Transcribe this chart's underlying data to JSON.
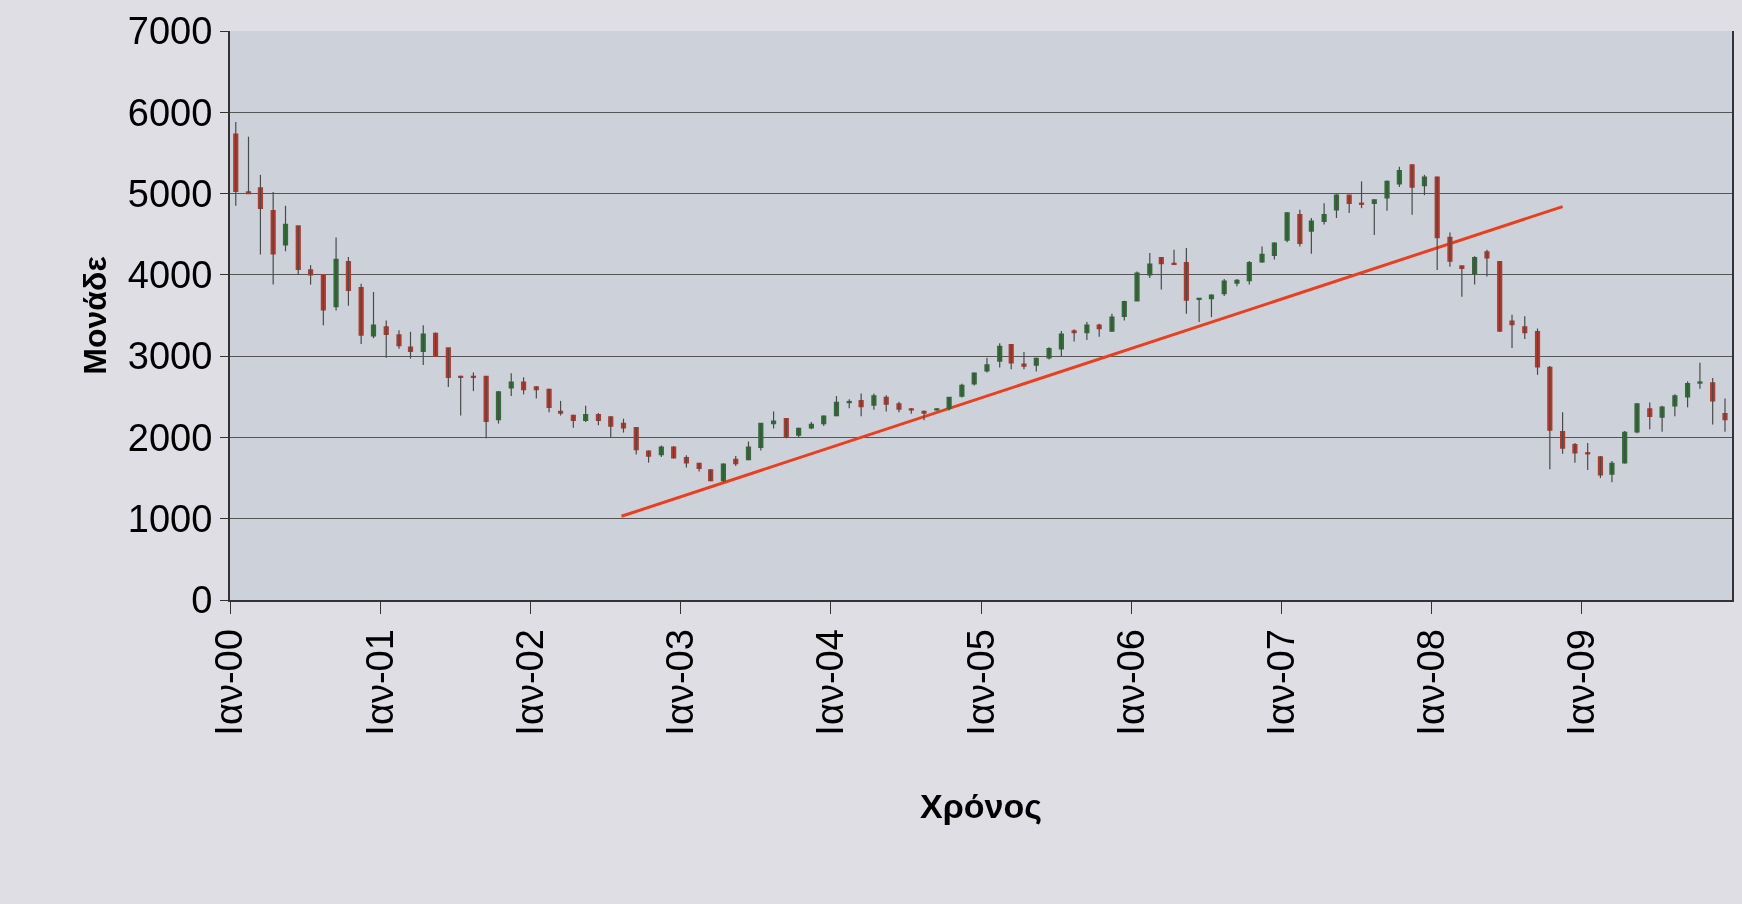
{
  "chart_data": {
    "type": "candlestick",
    "xlabel": "Χρόνος",
    "ylabel": "Μονάδε",
    "xlim": [
      "2000-01-01",
      "2010-01-01"
    ],
    "xticks": [
      {
        "value": "2000-01",
        "label": "Ιαν-00"
      },
      {
        "value": "2001-01",
        "label": "Ιαν-01"
      },
      {
        "value": "2002-01",
        "label": "Ιαν-02"
      },
      {
        "value": "2003-01",
        "label": "Ιαν-03"
      },
      {
        "value": "2004-01",
        "label": "Ιαν-04"
      },
      {
        "value": "2005-01",
        "label": "Ιαν-05"
      },
      {
        "value": "2006-01",
        "label": "Ιαν-06"
      },
      {
        "value": "2007-01",
        "label": "Ιαν-07"
      },
      {
        "value": "2008-01",
        "label": "Ιαν-08"
      },
      {
        "value": "2009-01",
        "label": "Ιαν-09"
      }
    ],
    "ylim": [
      0,
      7000
    ],
    "yticks": [
      0,
      1000,
      2000,
      3000,
      4000,
      5000,
      6000,
      7000
    ],
    "grid": "y",
    "series": [
      {
        "colors": [
          "#b23a2c",
          "#b23a2c",
          "#b23a2c",
          "#b23a2c",
          "#2f6e34",
          "#b23a2c",
          "#b23a2c",
          "#b23a2c",
          "#2f6e34",
          "#b23a2c",
          "#b23a2c",
          "#2f6e34",
          "#b23a2c",
          "#b23a2c",
          "#b23a2c",
          "#2f6e34",
          "#b23a2c",
          "#b23a2c",
          "#b23a2c",
          "#b23a2c",
          "#b23a2c",
          "#2f6e34",
          "#2f6e34",
          "#b23a2c",
          "#b23a2c",
          "#b23a2c",
          "#b23a2c",
          "#b23a2c",
          "#2f6e34",
          "#b23a2c",
          "#b23a2c",
          "#b23a2c",
          "#b23a2c",
          "#b23a2c",
          "#2f6e34",
          "#b23a2c",
          "#b23a2c",
          "#b23a2c",
          "#b23a2c",
          "#2f6e34",
          "#b23a2c",
          "#2f6e34",
          "#2f6e34",
          "#2f6e34",
          "#b23a2c",
          "#2f6e34",
          "#2f6e34",
          "#2f6e34",
          "#2f6e34",
          "#2f6e34",
          "#b23a2c",
          "#2f6e34",
          "#b23a2c",
          "#b23a2c",
          "#b23a2c",
          "#b23a2c",
          "#2f6e34",
          "#2f6e34",
          "#2f6e34",
          "#2f6e34",
          "#2f6e34",
          "#2f6e34",
          "#b23a2c",
          "#b23a2c",
          "#2f6e34",
          "#2f6e34",
          "#2f6e34",
          "#b23a2c",
          "#2f6e34",
          "#b23a2c",
          "#2f6e34",
          "#2f6e34",
          "#2f6e34",
          "#2f6e34",
          "#b23a2c",
          "#b23a2c",
          "#b23a2c",
          "#2f6e34",
          "#2f6e34",
          "#2f6e34",
          "#2f6e34",
          "#2f6e34",
          "#2f6e34",
          "#2f6e34",
          "#2f6e34",
          "#b23a2c",
          "#2f6e34",
          "#2f6e34",
          "#2f6e34",
          "#b23a2c",
          "#b23a2c",
          "#2f6e34",
          "#2f6e34",
          "#2f6e34",
          "#b23a2c",
          "#2f6e34",
          "#b23a2c",
          "#b23a2c",
          "#b23a2c",
          "#2f6e34",
          "#b23a2c",
          "#b23a2c",
          "#b23a2c",
          "#b23a2c",
          "#b23a2c",
          "#b23a2c",
          "#b23a2c",
          "#b23a2c",
          "#b23a2c",
          "#b23a2c",
          "#2f6e34",
          "#2f6e34",
          "#2f6e34",
          "#b23a2c",
          "#2f6e34",
          "#2f6e34",
          "#2f6e34",
          "#2f6e34",
          "#b23a2c",
          "#b23a2c"
        ],
        "x": [
          "2000-01-15",
          "2000-02-15",
          "2000-03-15",
          "2000-04-15",
          "2000-05-15",
          "2000-06-15",
          "2000-07-15",
          "2000-08-15",
          "2000-09-15",
          "2000-10-15",
          "2000-11-15",
          "2000-12-15",
          "2001-01-15",
          "2001-02-15",
          "2001-03-15",
          "2001-04-15",
          "2001-05-15",
          "2001-06-15",
          "2001-07-15",
          "2001-08-15",
          "2001-09-15",
          "2001-10-15",
          "2001-11-15",
          "2001-12-15",
          "2002-01-15",
          "2002-02-15",
          "2002-03-15",
          "2002-04-15",
          "2002-05-15",
          "2002-06-15",
          "2002-07-15",
          "2002-08-15",
          "2002-09-15",
          "2002-10-15",
          "2002-11-15",
          "2002-12-15",
          "2003-01-15",
          "2003-02-15",
          "2003-03-15",
          "2003-04-15",
          "2003-05-15",
          "2003-06-15",
          "2003-07-15",
          "2003-08-15",
          "2003-09-15",
          "2003-10-15",
          "2003-11-15",
          "2003-12-15",
          "2004-01-15",
          "2004-02-15",
          "2004-03-15",
          "2004-04-15",
          "2004-05-15",
          "2004-06-15",
          "2004-07-15",
          "2004-08-15",
          "2004-09-15",
          "2004-10-15",
          "2004-11-15",
          "2004-12-15",
          "2005-01-15",
          "2005-02-15",
          "2005-03-15",
          "2005-04-15",
          "2005-05-15",
          "2005-06-15",
          "2005-07-15",
          "2005-08-15",
          "2005-09-15",
          "2005-10-15",
          "2005-11-15",
          "2005-12-15",
          "2006-01-15",
          "2006-02-15",
          "2006-03-15",
          "2006-04-15",
          "2006-05-15",
          "2006-06-15",
          "2006-07-15",
          "2006-08-15",
          "2006-09-15",
          "2006-10-15",
          "2006-11-15",
          "2006-12-15",
          "2007-01-15",
          "2007-02-15",
          "2007-03-15",
          "2007-04-15",
          "2007-05-15",
          "2007-06-15",
          "2007-07-15",
          "2007-08-15",
          "2007-09-15",
          "2007-10-15",
          "2007-11-15",
          "2007-12-15",
          "2008-01-15",
          "2008-02-15",
          "2008-03-15",
          "2008-04-15",
          "2008-05-15",
          "2008-06-15",
          "2008-07-15",
          "2008-08-15",
          "2008-09-15",
          "2008-10-15",
          "2008-11-15",
          "2008-12-15",
          "2009-01-15",
          "2009-02-15",
          "2009-03-15",
          "2009-04-15",
          "2009-05-15",
          "2009-06-15",
          "2009-07-15",
          "2009-08-15",
          "2009-09-15",
          "2009-10-15",
          "2009-11-15",
          "2009-12-15"
        ],
        "ohlc": [
          [
            5730,
            5880,
            4850,
            5030
          ],
          [
            5020,
            5700,
            5000,
            5000
          ],
          [
            5070,
            5230,
            4250,
            4820
          ],
          [
            4790,
            5020,
            3880,
            4260
          ],
          [
            4370,
            4850,
            4290,
            4620
          ],
          [
            4600,
            4600,
            4000,
            4070
          ],
          [
            4060,
            4120,
            3880,
            4000
          ],
          [
            4000,
            4000,
            3380,
            3570
          ],
          [
            3610,
            4460,
            3560,
            4190
          ],
          [
            4160,
            4220,
            3620,
            3810
          ],
          [
            3840,
            3890,
            3150,
            3260
          ],
          [
            3250,
            3790,
            3220,
            3380
          ],
          [
            3360,
            3440,
            2980,
            3270
          ],
          [
            3260,
            3320,
            3090,
            3130
          ],
          [
            3110,
            3300,
            2970,
            3060
          ],
          [
            3060,
            3380,
            2890,
            3270
          ],
          [
            3280,
            3290,
            3000,
            3000
          ],
          [
            3100,
            3100,
            2620,
            2740
          ],
          [
            2750,
            2760,
            2270,
            2740
          ],
          [
            2750,
            2800,
            2570,
            2740
          ],
          [
            2750,
            2750,
            1990,
            2200
          ],
          [
            2220,
            2570,
            2170,
            2560
          ],
          [
            2610,
            2790,
            2510,
            2680
          ],
          [
            2680,
            2740,
            2530,
            2590
          ],
          [
            2620,
            2630,
            2480,
            2590
          ],
          [
            2590,
            2600,
            2310,
            2370
          ],
          [
            2320,
            2450,
            2270,
            2300
          ],
          [
            2270,
            2280,
            2120,
            2210
          ],
          [
            2210,
            2390,
            2190,
            2280
          ],
          [
            2280,
            2300,
            2150,
            2210
          ],
          [
            2250,
            2260,
            2000,
            2140
          ],
          [
            2170,
            2230,
            2060,
            2120
          ],
          [
            2120,
            2120,
            1790,
            1850
          ],
          [
            1830,
            1840,
            1690,
            1770
          ],
          [
            1790,
            1900,
            1760,
            1880
          ],
          [
            1880,
            1890,
            1740,
            1750
          ],
          [
            1750,
            1780,
            1630,
            1690
          ],
          [
            1680,
            1690,
            1580,
            1620
          ],
          [
            1600,
            1610,
            1460,
            1470
          ],
          [
            1470,
            1680,
            1450,
            1670
          ],
          [
            1730,
            1770,
            1650,
            1680
          ],
          [
            1730,
            1950,
            1720,
            1880
          ],
          [
            1880,
            2170,
            1840,
            2170
          ],
          [
            2170,
            2320,
            2110,
            2200
          ],
          [
            2230,
            2230,
            1990,
            2010
          ],
          [
            2030,
            2120,
            2000,
            2110
          ],
          [
            2120,
            2190,
            2100,
            2160
          ],
          [
            2170,
            2270,
            2140,
            2260
          ],
          [
            2270,
            2510,
            2260,
            2430
          ],
          [
            2430,
            2470,
            2360,
            2440
          ],
          [
            2450,
            2540,
            2260,
            2380
          ],
          [
            2400,
            2540,
            2340,
            2510
          ],
          [
            2490,
            2520,
            2320,
            2410
          ],
          [
            2410,
            2440,
            2310,
            2350
          ],
          [
            2350,
            2360,
            2290,
            2340
          ],
          [
            2320,
            2330,
            2210,
            2300
          ],
          [
            2340,
            2360,
            2330,
            2350
          ],
          [
            2360,
            2490,
            2330,
            2490
          ],
          [
            2510,
            2660,
            2490,
            2640
          ],
          [
            2660,
            2800,
            2640,
            2790
          ],
          [
            2820,
            2980,
            2800,
            2890
          ],
          [
            2940,
            3160,
            2860,
            3120
          ],
          [
            3140,
            3150,
            2840,
            2920
          ],
          [
            2900,
            3050,
            2840,
            2880
          ],
          [
            2890,
            2980,
            2810,
            2970
          ],
          [
            2980,
            3110,
            2960,
            3090
          ],
          [
            3090,
            3310,
            3000,
            3270
          ],
          [
            3310,
            3330,
            3180,
            3290
          ],
          [
            3290,
            3420,
            3200,
            3380
          ],
          [
            3380,
            3400,
            3240,
            3340
          ],
          [
            3310,
            3520,
            3300,
            3480
          ],
          [
            3490,
            3680,
            3440,
            3670
          ],
          [
            3680,
            4040,
            3680,
            4020
          ],
          [
            4000,
            4270,
            3960,
            4130
          ],
          [
            4210,
            4220,
            3820,
            4140
          ],
          [
            4140,
            4310,
            4130,
            4130
          ],
          [
            4150,
            4330,
            3520,
            3690
          ],
          [
            3700,
            3710,
            3420,
            3710
          ],
          [
            3710,
            3760,
            3480,
            3750
          ],
          [
            3770,
            3950,
            3740,
            3920
          ],
          [
            3900,
            3950,
            3860,
            3930
          ],
          [
            3930,
            4170,
            3880,
            4150
          ],
          [
            4160,
            4350,
            4150,
            4250
          ],
          [
            4240,
            4400,
            4190,
            4390
          ],
          [
            4430,
            4770,
            4400,
            4760
          ],
          [
            4740,
            4800,
            4350,
            4390
          ],
          [
            4540,
            4700,
            4260,
            4660
          ],
          [
            4660,
            4880,
            4620,
            4740
          ],
          [
            4800,
            4990,
            4700,
            4980
          ],
          [
            4980,
            4980,
            4760,
            4880
          ],
          [
            4880,
            5150,
            4820,
            4870
          ],
          [
            4880,
            4930,
            4490,
            4920
          ],
          [
            4950,
            5160,
            4790,
            5150
          ],
          [
            5120,
            5330,
            5080,
            5280
          ],
          [
            5350,
            5360,
            4740,
            5080
          ],
          [
            5100,
            5230,
            4980,
            5200
          ],
          [
            5200,
            5210,
            4060,
            4460
          ],
          [
            4460,
            4520,
            4100,
            4170
          ],
          [
            4110,
            4110,
            3730,
            4080
          ],
          [
            4010,
            4230,
            3880,
            4210
          ],
          [
            4280,
            4310,
            3980,
            4210
          ],
          [
            4160,
            4170,
            3300,
            3310
          ],
          [
            3430,
            3510,
            3100,
            3390
          ],
          [
            3360,
            3490,
            3210,
            3290
          ],
          [
            3300,
            3340,
            2770,
            2870
          ],
          [
            2860,
            2880,
            1610,
            2090
          ],
          [
            2070,
            2310,
            1800,
            1870
          ],
          [
            1910,
            1930,
            1690,
            1810
          ],
          [
            1810,
            1930,
            1600,
            1800
          ],
          [
            1760,
            1770,
            1500,
            1540
          ],
          [
            1550,
            1710,
            1450,
            1680
          ],
          [
            1690,
            2080,
            1680,
            2060
          ],
          [
            2070,
            2420,
            2050,
            2410
          ],
          [
            2350,
            2430,
            2100,
            2260
          ],
          [
            2250,
            2390,
            2070,
            2370
          ],
          [
            2390,
            2530,
            2260,
            2510
          ],
          [
            2500,
            2690,
            2370,
            2660
          ],
          [
            2670,
            2920,
            2600,
            2680
          ],
          [
            2670,
            2730,
            2160,
            2450
          ],
          [
            2290,
            2480,
            2070,
            2220
          ]
        ]
      },
      {
        "type": "line",
        "color": "#e8401f",
        "x": [
          "2002-08-10",
          "2008-11-15"
        ],
        "values": [
          1030,
          4840
        ]
      }
    ]
  }
}
